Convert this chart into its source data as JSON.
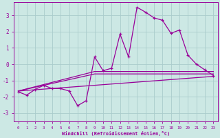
{
  "xlabel": "Windchill (Refroidissement éolien,°C)",
  "x_ticks": [
    0,
    1,
    2,
    3,
    4,
    5,
    6,
    7,
    8,
    9,
    10,
    11,
    12,
    13,
    14,
    15,
    16,
    17,
    18,
    19,
    20,
    21,
    22,
    23
  ],
  "xlim": [
    -0.5,
    23.5
  ],
  "ylim": [
    -3.5,
    3.8
  ],
  "yticks": [
    -3,
    -2,
    -1,
    0,
    1,
    2,
    3
  ],
  "bg_color": "#cce8e4",
  "grid_color": "#aacccc",
  "line_color": "#990099",
  "line1_x": [
    0,
    1,
    2,
    3,
    4,
    5,
    6,
    7,
    8,
    9,
    10,
    11,
    12,
    13,
    14,
    15,
    16,
    17,
    18,
    19,
    20,
    21,
    22,
    23
  ],
  "line1_y": [
    -1.7,
    -1.9,
    -1.55,
    -1.3,
    -1.5,
    -1.5,
    -1.65,
    -2.55,
    -2.25,
    0.45,
    -0.4,
    -0.25,
    1.85,
    0.45,
    3.5,
    3.2,
    2.85,
    2.7,
    1.9,
    2.1,
    0.55,
    0.0,
    -0.35,
    -0.7
  ],
  "line2_x": [
    0,
    23
  ],
  "line2_y": [
    -1.65,
    -0.75
  ],
  "line3_x": [
    0,
    9,
    23
  ],
  "line3_y": [
    -1.65,
    -0.6,
    -0.6
  ],
  "line4_x": [
    0,
    9,
    23
  ],
  "line4_y": [
    -1.65,
    -0.45,
    -0.45
  ]
}
